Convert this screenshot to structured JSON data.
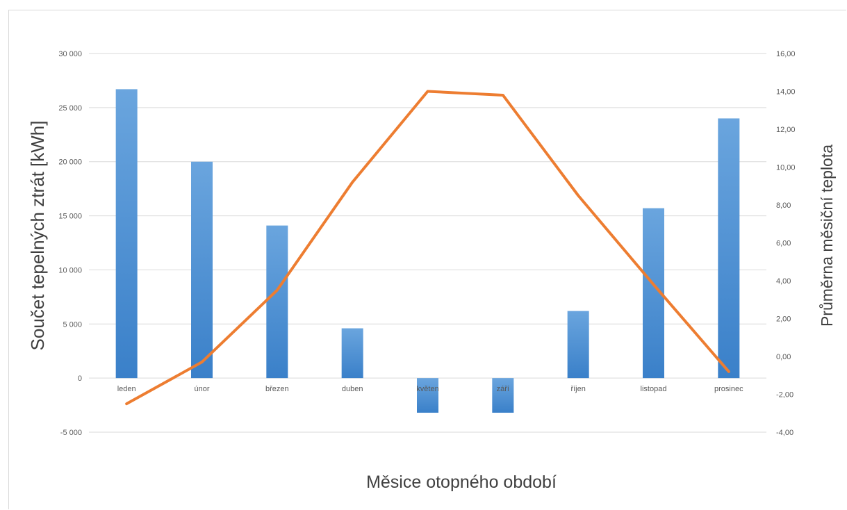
{
  "chart_data": {
    "type": "bar",
    "categories": [
      "leden",
      "únor",
      "březen",
      "duben",
      "květen",
      "září",
      "říjen",
      "listopad",
      "prosinec"
    ],
    "series": [
      {
        "type": "bar",
        "axis": "left",
        "color": "#4a8fd3",
        "values": [
          26700,
          20000,
          14100,
          4600,
          -3200,
          -3200,
          6200,
          15700,
          24000
        ]
      },
      {
        "type": "line",
        "axis": "right",
        "color": "#ed7d31",
        "values": [
          -2.5,
          -0.3,
          3.5,
          9.2,
          14.0,
          13.8,
          8.5,
          3.8,
          -0.8
        ]
      }
    ],
    "xlabel": "Měsice otopného období",
    "ylabel": "Součet tepelných ztrát [kWh]",
    "y2label": "Průměrna měsiční teplota",
    "ylim": [
      -5000,
      30000
    ],
    "y2lim": [
      -4,
      16
    ],
    "yticks": [
      "-5 000",
      "0",
      "5 000",
      "10 000",
      "15 000",
      "20 000",
      "25 000",
      "30 000"
    ],
    "y2ticks": [
      "-4,00",
      "-2,00",
      "0,00",
      "2,00",
      "4,00",
      "6,00",
      "8,00",
      "10,00",
      "12,00",
      "14,00",
      "16,00"
    ],
    "grid": true,
    "legend": "none"
  }
}
